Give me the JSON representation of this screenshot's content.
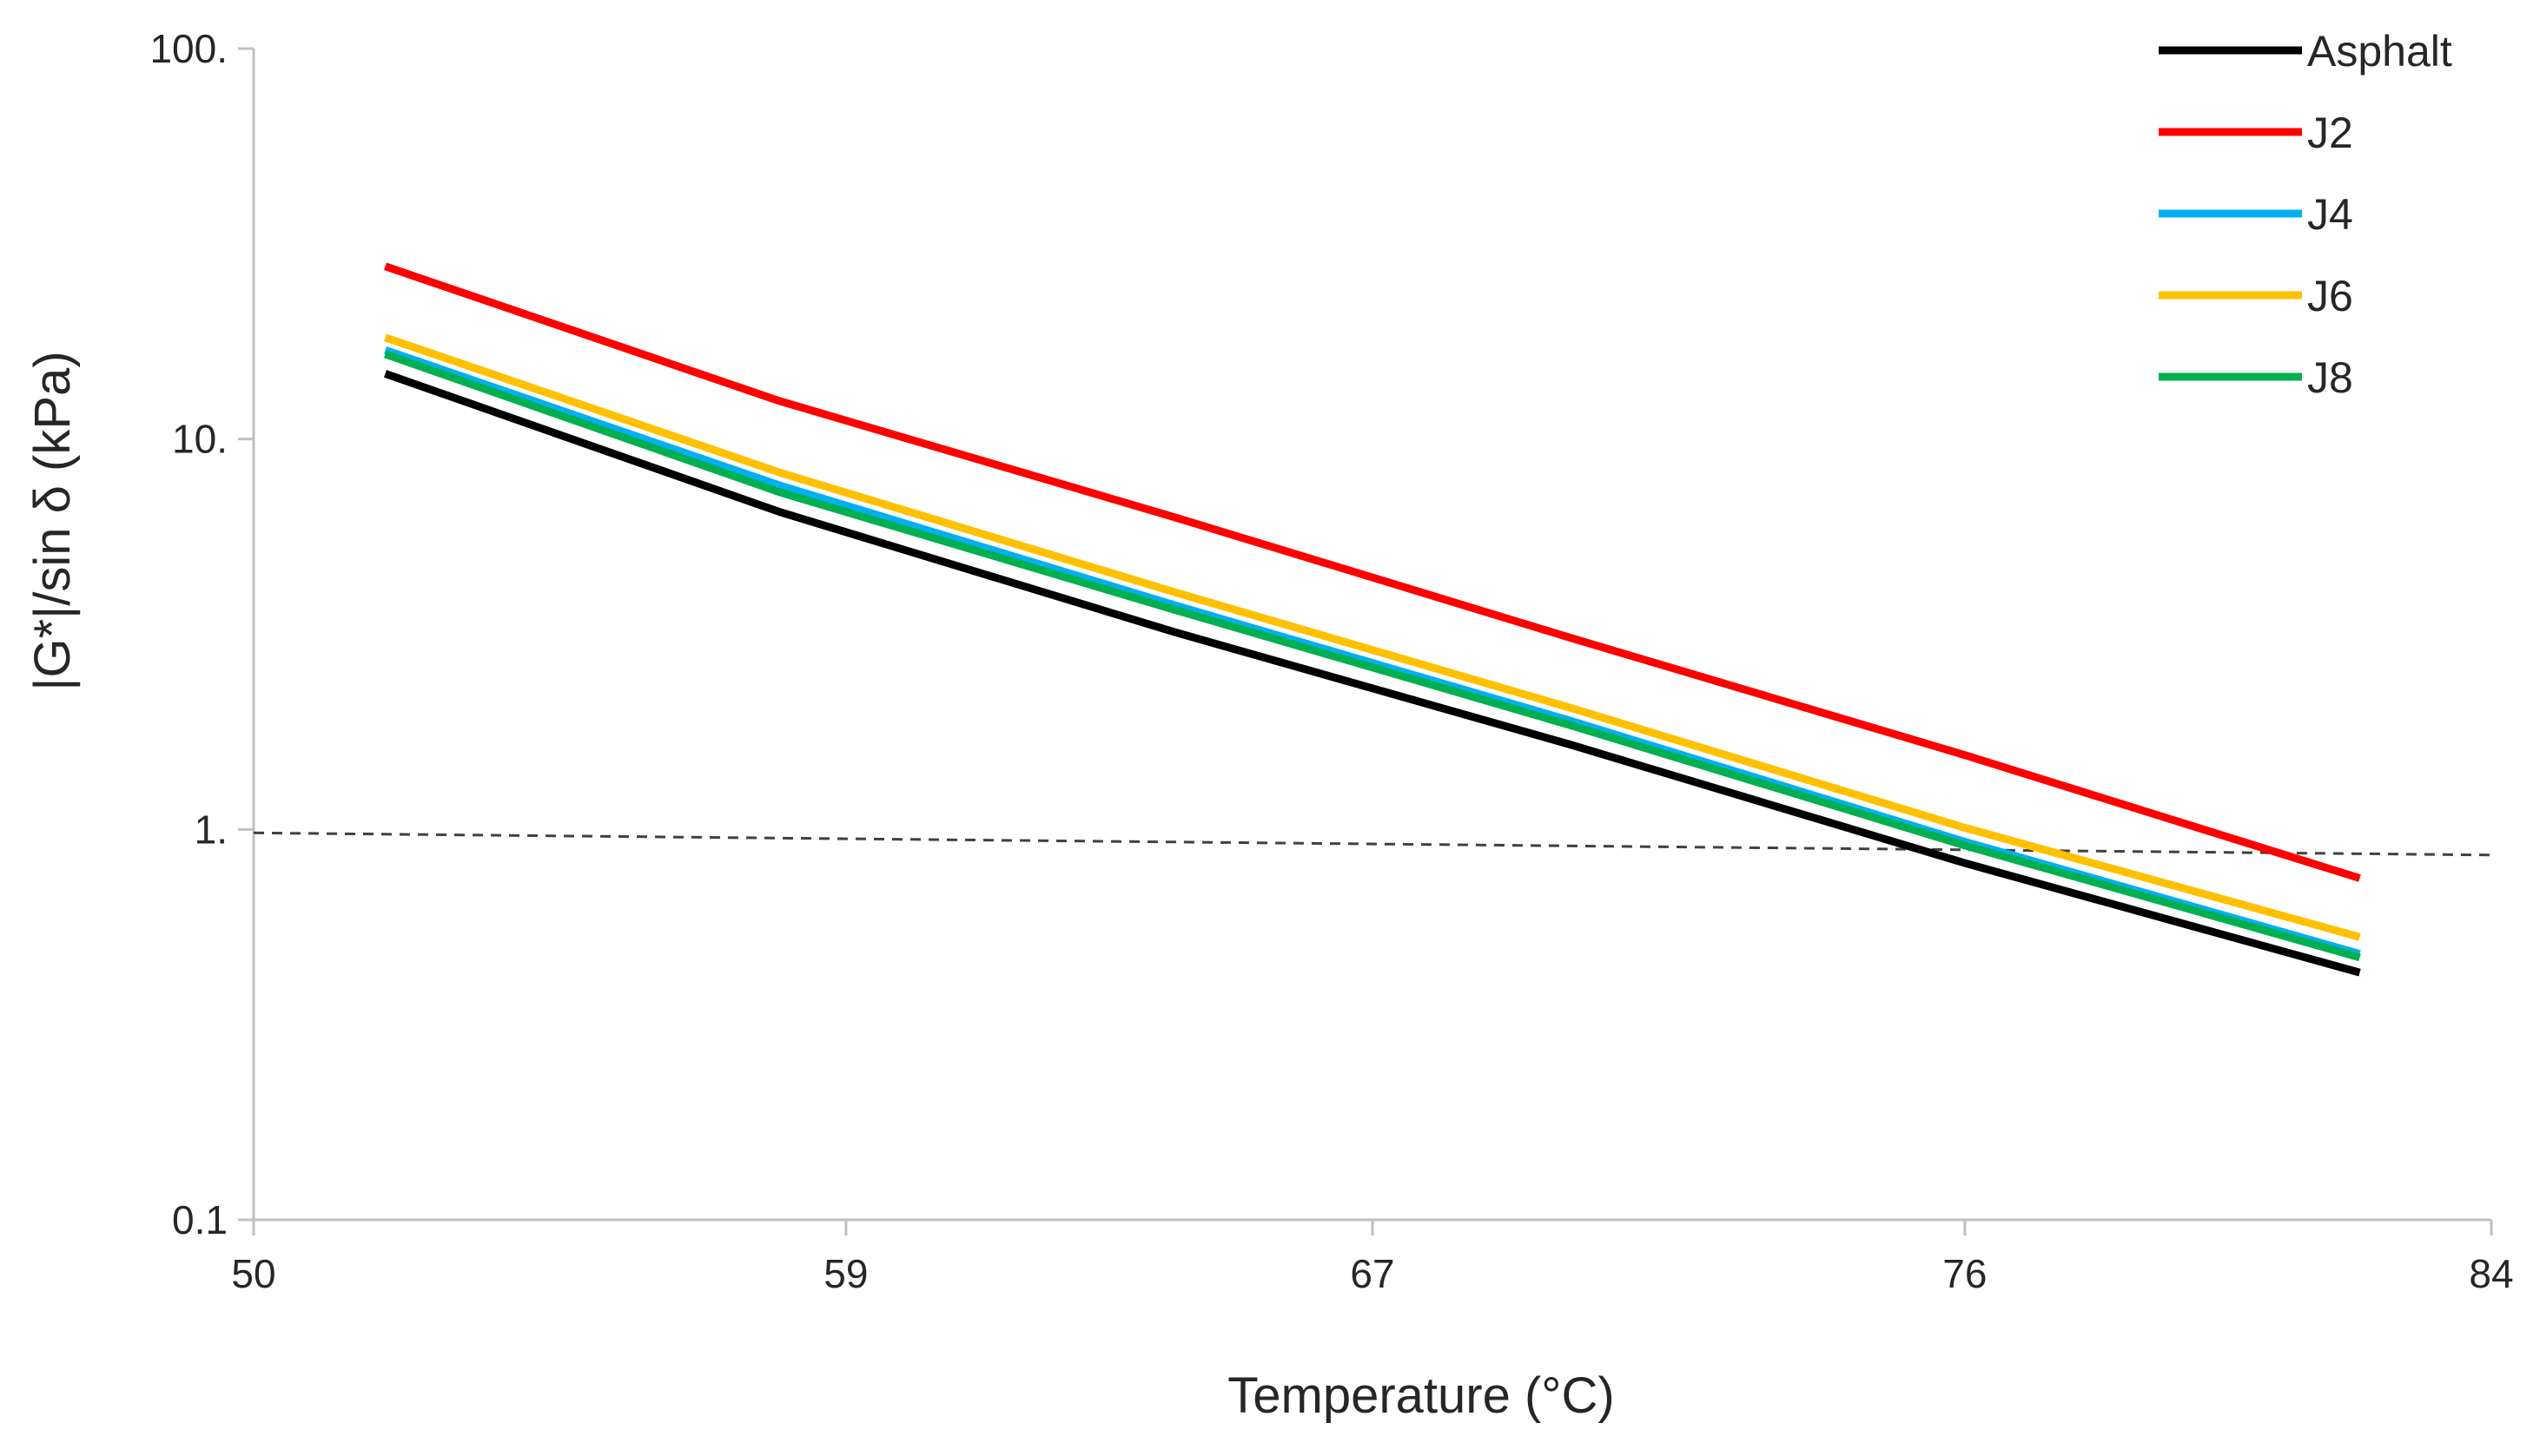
{
  "chart_data": {
    "type": "line",
    "title": "",
    "xlabel": "Temperature (°C)",
    "ylabel": "|G*|/sin δ  (kPa)",
    "x_ticks": [
      50,
      59,
      67,
      76,
      84
    ],
    "x_tick_labels": [
      "50",
      "59",
      "67",
      "76",
      "84"
    ],
    "y_ticks": [
      0.1,
      1,
      10,
      100
    ],
    "y_tick_labels": [
      "0.1",
      "1.",
      "10.",
      "100."
    ],
    "xlim": [
      50,
      84
    ],
    "ylim": [
      0.1,
      100
    ],
    "y_scale": "log",
    "legend_position": "top-right",
    "reference_line": {
      "name": "dashed threshold",
      "points": [
        [
          50,
          0.98
        ],
        [
          84,
          0.86
        ]
      ],
      "color": "#404040",
      "style": "dashed"
    },
    "series": [
      {
        "name": "Asphalt",
        "color": "#000000",
        "x": [
          52,
          58,
          64,
          70,
          76,
          82
        ],
        "y": [
          14.7,
          6.5,
          3.2,
          1.65,
          0.82,
          0.43
        ]
      },
      {
        "name": "J2",
        "color": "#ff0000",
        "x": [
          52,
          58,
          64,
          70,
          76,
          82
        ],
        "y": [
          27.7,
          12.5,
          6.3,
          3.1,
          1.55,
          0.75
        ]
      },
      {
        "name": "J4",
        "color": "#00b0f0",
        "x": [
          52,
          58,
          64,
          70,
          76,
          82
        ],
        "y": [
          16.9,
          7.6,
          3.75,
          1.9,
          0.93,
          0.48
        ]
      },
      {
        "name": "J6",
        "color": "#ffc000",
        "x": [
          52,
          58,
          64,
          70,
          76,
          82
        ],
        "y": [
          18.2,
          8.2,
          4.05,
          2.05,
          1.01,
          0.53
        ]
      },
      {
        "name": "J8",
        "color": "#00b050",
        "x": [
          52,
          58,
          64,
          70,
          76,
          82
        ],
        "y": [
          16.5,
          7.3,
          3.65,
          1.85,
          0.91,
          0.47
        ]
      }
    ]
  }
}
